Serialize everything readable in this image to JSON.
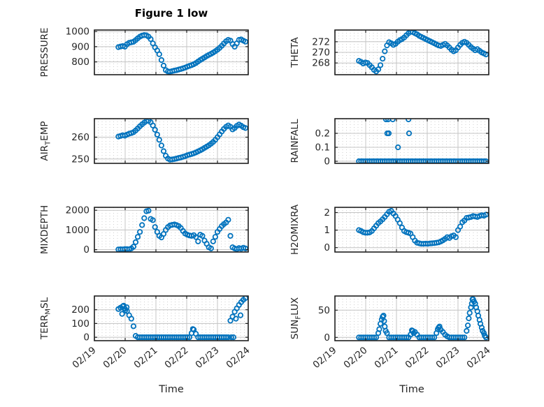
{
  "figure": {
    "title": "Figure 1 low",
    "xlabel": "Time"
  },
  "chart_data": {
    "type": "scatter",
    "marker": "open-circle",
    "marker_color": "#0072BD",
    "major_grid_color": "#c4c4c4",
    "minor_grid_color": "#cfcfcf",
    "axes_color": "#202020",
    "tick_label_color": "#262626",
    "grid": "on",
    "minor_grid": "dotted",
    "xlim": [
      0,
      5
    ],
    "x_ticks": [
      0,
      1,
      2,
      3,
      4,
      5
    ],
    "x_tick_labels": [
      "02/19",
      "02/20",
      "02/21",
      "02/22",
      "02/23",
      "02/24"
    ],
    "xlabel": "Time",
    "t": [
      0.78,
      0.85,
      0.92,
      0.99,
      1.06,
      1.13,
      1.2,
      1.27,
      1.34,
      1.41,
      1.48,
      1.55,
      1.62,
      1.69,
      1.76,
      1.83,
      1.9,
      1.97,
      2.04,
      2.11,
      2.18,
      2.25,
      2.32,
      2.39,
      2.46,
      2.53,
      2.6,
      2.67,
      2.74,
      2.81,
      2.88,
      2.95,
      3.02,
      3.09,
      3.16,
      3.23,
      3.3,
      3.37,
      3.44,
      3.51,
      3.58,
      3.65,
      3.72,
      3.79,
      3.86,
      3.93,
      4.0,
      4.07,
      4.14,
      4.21,
      4.28,
      4.35,
      4.42,
      4.49,
      4.56,
      4.63,
      4.7,
      4.77,
      4.84,
      4.91
    ],
    "subplots": [
      {
        "name": "PRESSURE",
        "row": 0,
        "col": 0,
        "ylabel": {
          "pre": "PRESSURE",
          "sub": "",
          "post": ""
        },
        "ylim": [
          715,
          1010
        ],
        "yticks": [
          800,
          900,
          1000
        ],
        "ytick_labels": [
          "800",
          "900",
          "1000"
        ],
        "y": [
          897,
          901,
          904,
          900,
          916,
          925,
          929,
          932,
          943,
          955,
          966,
          973,
          977,
          975,
          966,
          950,
          922,
          895,
          875,
          850,
          812,
          775,
          745,
          736,
          735,
          739,
          742,
          745,
          749,
          753,
          757,
          762,
          768,
          773,
          778,
          784,
          792,
          802,
          812,
          820,
          829,
          838,
          846,
          853,
          861,
          870,
          880,
          892,
          906,
          921,
          936,
          945,
          940,
          918,
          900,
          922,
          945,
          948,
          940,
          933
        ],
        "extra": []
      },
      {
        "name": "THETA",
        "row": 0,
        "col": 1,
        "ylabel": {
          "pre": "THETA",
          "sub": "",
          "post": ""
        },
        "ylim": [
          265.8,
          274.2
        ],
        "yticks": [
          268,
          270,
          272
        ],
        "ytick_labels": [
          "268",
          "270",
          "272"
        ],
        "y": [
          268.4,
          268.2,
          267.9,
          268.1,
          268.0,
          267.6,
          267.2,
          266.7,
          266.4,
          266.8,
          267.6,
          268.8,
          270.2,
          271.3,
          271.9,
          271.7,
          271.4,
          271.6,
          272.0,
          272.3,
          272.5,
          272.8,
          273.2,
          273.6,
          273.9,
          273.8,
          273.6,
          273.4,
          273.1,
          272.9,
          272.7,
          272.5,
          272.3,
          272.1,
          271.9,
          271.7,
          271.5,
          271.3,
          271.2,
          271.4,
          271.6,
          271.3,
          270.9,
          270.5,
          270.2,
          270.4,
          270.9,
          271.4,
          271.8,
          272.0,
          271.8,
          271.4,
          271.0,
          270.7,
          270.4,
          270.6,
          270.3,
          270.0,
          269.8,
          269.6
        ],
        "extra": []
      },
      {
        "name": "AIR_TEMP",
        "row": 1,
        "col": 0,
        "ylabel": {
          "pre": "AIR",
          "sub": "T",
          "post": "EMP"
        },
        "ylim": [
          248,
          268.5
        ],
        "yticks": [
          250,
          260
        ],
        "ytick_labels": [
          "250",
          "260"
        ],
        "y": [
          260.3,
          260.6,
          260.9,
          260.7,
          261.2,
          261.6,
          261.9,
          262.3,
          263.1,
          264.0,
          265.0,
          265.9,
          266.7,
          267.4,
          267.6,
          266.9,
          265.4,
          263.4,
          261.2,
          258.8,
          256.2,
          253.6,
          251.5,
          250.2,
          249.7,
          249.8,
          250.0,
          250.2,
          250.5,
          250.7,
          251.0,
          251.3,
          251.7,
          252.0,
          252.3,
          252.6,
          253.0,
          253.5,
          254.0,
          254.5,
          255.1,
          255.7,
          256.3,
          257.0,
          257.8,
          258.8,
          260.0,
          261.3,
          262.6,
          263.8,
          264.8,
          265.4,
          264.8,
          263.6,
          264.2,
          265.2,
          265.8,
          265.3,
          264.6,
          264.2
        ],
        "extra": []
      },
      {
        "name": "RAINFALL",
        "row": 1,
        "col": 1,
        "ylabel": {
          "pre": "RAINFALL",
          "sub": "",
          "post": ""
        },
        "ylim": [
          -0.015,
          0.305
        ],
        "yticks": [
          0,
          0.1,
          0.2
        ],
        "ytick_labels": [
          "0",
          "0.1",
          "0.2"
        ],
        "y": [
          0,
          0,
          0,
          0,
          0,
          0,
          0,
          0,
          0,
          0,
          0,
          0,
          0,
          0,
          0,
          0,
          0,
          0,
          0,
          0,
          0,
          0,
          0,
          0,
          0,
          0,
          0,
          0,
          0,
          0,
          0,
          0,
          0,
          0,
          0,
          0,
          0,
          0,
          0,
          0,
          0,
          0,
          0,
          0,
          0,
          0,
          0,
          0,
          0,
          0,
          0,
          0,
          0,
          0,
          0,
          0,
          0,
          0,
          0,
          0
        ],
        "extra": [
          [
            1.66,
            0.3
          ],
          [
            1.73,
            0.3
          ],
          [
            1.88,
            0.3
          ],
          [
            2.39,
            0.3
          ],
          [
            1.7,
            0.2
          ],
          [
            1.75,
            0.2
          ],
          [
            2.41,
            0.2
          ],
          [
            2.05,
            0.1
          ]
        ]
      },
      {
        "name": "MIXDEPTH",
        "row": 2,
        "col": 0,
        "ylabel": {
          "pre": "MIXDEPTH",
          "sub": "",
          "post": ""
        },
        "ylim": [
          -120,
          2150
        ],
        "yticks": [
          0,
          1000,
          2000
        ],
        "ytick_labels": [
          "0",
          "1000",
          "2000"
        ],
        "y": [
          10,
          20,
          15,
          25,
          30,
          20,
          60,
          150,
          380,
          650,
          900,
          1250,
          1600,
          1950,
          1980,
          1560,
          1500,
          1150,
          900,
          700,
          620,
          800,
          1000,
          1150,
          1230,
          1260,
          1280,
          1250,
          1200,
          1100,
          950,
          820,
          760,
          720,
          700,
          740,
          640,
          420,
          760,
          700,
          460,
          300,
          120,
          60,
          420,
          650,
          900,
          1050,
          1200,
          1300,
          1380,
          1520,
          700,
          120,
          60,
          30,
          80,
          50,
          100,
          60
        ],
        "extra": []
      },
      {
        "name": "H2OMIXRA",
        "row": 2,
        "col": 1,
        "ylabel": {
          "pre": "H2OMIXRA",
          "sub": "",
          "post": ""
        },
        "ylim": [
          -0.25,
          2.3
        ],
        "yticks": [
          0,
          1,
          2
        ],
        "ytick_labels": [
          "0",
          "1",
          "2"
        ],
        "y": [
          1.0,
          0.95,
          0.88,
          0.85,
          0.85,
          0.87,
          0.95,
          1.1,
          1.25,
          1.4,
          1.5,
          1.62,
          1.75,
          1.9,
          2.05,
          2.1,
          1.95,
          1.8,
          1.6,
          1.4,
          1.15,
          0.95,
          0.88,
          0.85,
          0.8,
          0.6,
          0.4,
          0.28,
          0.25,
          0.22,
          0.22,
          0.23,
          0.22,
          0.24,
          0.25,
          0.26,
          0.28,
          0.3,
          0.35,
          0.42,
          0.5,
          0.6,
          0.55,
          0.65,
          0.7,
          0.6,
          1.0,
          1.2,
          1.45,
          1.55,
          1.7,
          1.72,
          1.75,
          1.8,
          1.78,
          1.75,
          1.8,
          1.85,
          1.82,
          1.88
        ],
        "extra": []
      },
      {
        "name": "TERR_MSL",
        "row": 3,
        "col": 0,
        "ylabel": {
          "pre": "TERR",
          "sub": "M",
          "post": "SL"
        },
        "ylim": [
          -25,
          300
        ],
        "yticks": [
          0,
          100,
          200
        ],
        "ytick_labels": [
          "0",
          "100",
          "200"
        ],
        "y": [
          205,
          215,
          225,
          208,
          190,
          160,
          135,
          80,
          10,
          0,
          0,
          0,
          0,
          0,
          0,
          0,
          0,
          0,
          0,
          0,
          0,
          0,
          0,
          0,
          0,
          0,
          0,
          0,
          0,
          0,
          0,
          0,
          0,
          0,
          30,
          55,
          25,
          0,
          0,
          0,
          0,
          0,
          0,
          0,
          0,
          0,
          0,
          0,
          0,
          0,
          0,
          0,
          120,
          150,
          185,
          210,
          235,
          255,
          272,
          285
        ],
        "extra": [
          [
            0.9,
            170
          ],
          [
            0.95,
            230
          ],
          [
            1.0,
            195
          ],
          [
            1.05,
            218
          ],
          [
            3.2,
            60
          ],
          [
            4.6,
            135
          ],
          [
            4.75,
            160
          ],
          [
            4.45,
            0
          ],
          [
            4.52,
            0
          ]
        ]
      },
      {
        "name": "SUN_FLUX",
        "row": 3,
        "col": 1,
        "ylabel": {
          "pre": "SUN",
          "sub": "F",
          "post": "LUX"
        },
        "ylim": [
          -6,
          76
        ],
        "yticks": [
          0,
          50
        ],
        "ytick_labels": [
          "0",
          "50"
        ],
        "y": [
          0,
          0,
          0,
          0,
          0,
          0,
          0,
          0,
          0,
          8,
          25,
          38,
          20,
          8,
          0,
          0,
          0,
          0,
          0,
          0,
          0,
          0,
          0,
          0,
          5,
          12,
          10,
          5,
          0,
          0,
          0,
          0,
          0,
          0,
          0,
          0,
          8,
          18,
          14,
          10,
          5,
          2,
          0,
          0,
          0,
          0,
          0,
          0,
          0,
          0,
          12,
          35,
          55,
          70,
          62,
          48,
          32,
          18,
          8,
          0
        ],
        "extra": [
          [
            1.44,
            15
          ],
          [
            1.52,
            33
          ],
          [
            1.58,
            40
          ],
          [
            1.6,
            30
          ],
          [
            1.65,
            12
          ],
          [
            2.5,
            13
          ],
          [
            2.56,
            8
          ],
          [
            3.34,
            15
          ],
          [
            3.4,
            20
          ],
          [
            4.32,
            22
          ],
          [
            4.38,
            45
          ],
          [
            4.45,
            62
          ],
          [
            4.47,
            70
          ],
          [
            4.52,
            66
          ],
          [
            4.59,
            55
          ],
          [
            4.66,
            40
          ],
          [
            4.73,
            25
          ],
          [
            4.8,
            12
          ],
          [
            4.87,
            3
          ]
        ]
      }
    ]
  }
}
